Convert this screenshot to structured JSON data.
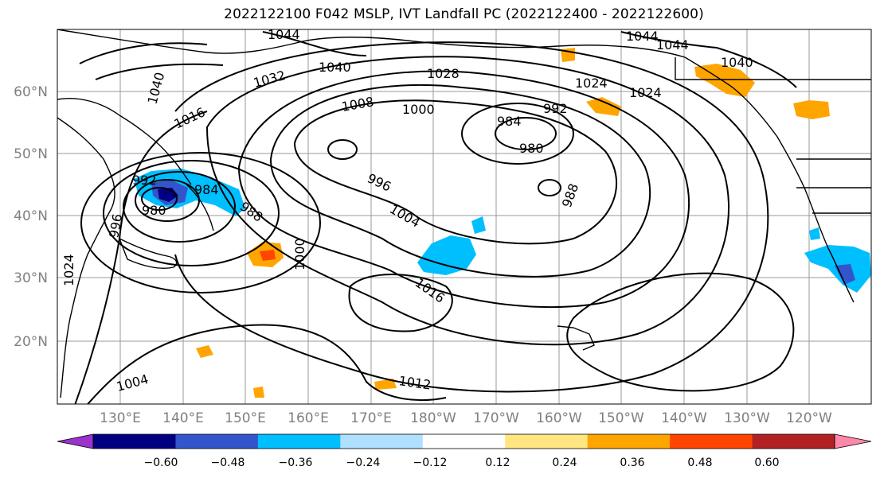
{
  "title": "2022122100 F042 MSLP, IVT Landfall PC (2022122400 - 2022122600)",
  "lat_ticks": [
    "60°N",
    "50°N",
    "40°N",
    "30°N",
    "20°N"
  ],
  "lon_ticks": [
    "130°E",
    "140°E",
    "150°E",
    "160°E",
    "170°E",
    "180°W",
    "170°W",
    "160°W",
    "150°W",
    "140°W",
    "130°W",
    "120°W"
  ],
  "isobar_labels": [
    "1044",
    "1044",
    "1044",
    "1040",
    "1040",
    "1040",
    "1032",
    "1028",
    "1024",
    "1024",
    "1016",
    "1008",
    "1000",
    "992",
    "984",
    "980",
    "996",
    "992",
    "984",
    "988",
    "988",
    "980",
    "996",
    "1004",
    "1000",
    "1016",
    "1004",
    "1012",
    "1024"
  ],
  "colorbar": {
    "tick_labels": [
      "−0.60",
      "−0.48",
      "−0.36",
      "−0.24",
      "−0.12",
      "0.12",
      "0.24",
      "0.36",
      "0.48",
      "0.60"
    ],
    "colors": [
      "#9933cc",
      "#000080",
      "#3355cc",
      "#00bfff",
      "#b0e0ff",
      "#ffffff",
      "#ffe680",
      "#ffa500",
      "#ff4500",
      "#b22222",
      "#ff88aa"
    ]
  }
}
